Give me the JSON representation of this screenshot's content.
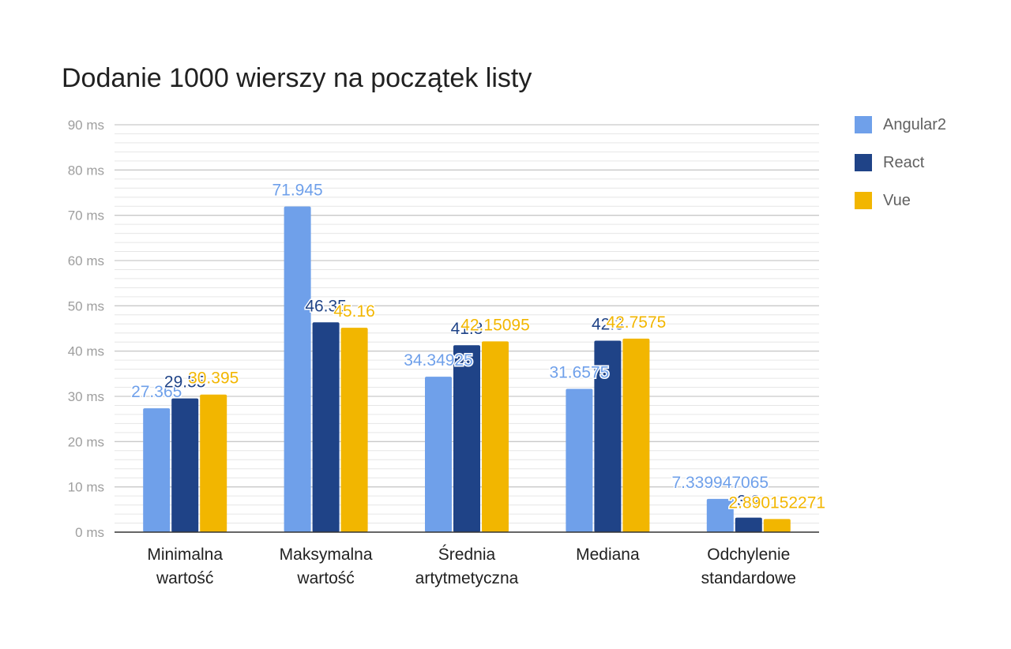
{
  "chart_data": {
    "type": "bar",
    "title": "Dodanie 1000 wierszy na początek listy",
    "xlabel": "",
    "ylabel": "",
    "ylim": [
      0,
      90
    ],
    "y_tick_labels": [
      "0 ms",
      "10 ms",
      "20 ms",
      "30 ms",
      "40 ms",
      "50 ms",
      "60 ms",
      "70 ms",
      "80 ms",
      "90 ms"
    ],
    "grid": true,
    "legend_position": "right",
    "categories": [
      [
        "Minimalna",
        "wartość"
      ],
      [
        "Maksymalna",
        "wartość"
      ],
      [
        "Średnia",
        "artytmetyczna"
      ],
      [
        "Mediana"
      ],
      [
        "Odchylenie",
        "standardowe"
      ]
    ],
    "series": [
      {
        "name": "Angular2",
        "color": "#6fa0ea",
        "values": [
          27.365,
          71.945,
          34.34925,
          31.6575,
          7.339947065
        ],
        "labels": [
          "27.365",
          "71.945",
          "34.34925",
          "31.6575",
          "7.339947065"
        ]
      },
      {
        "name": "React",
        "color": "#1f4387",
        "values": [
          29.55,
          46.35,
          41.3,
          42.3,
          3.2
        ],
        "labels": [
          "29.55",
          "46.35",
          "41.3",
          "42.3",
          "3.2"
        ]
      },
      {
        "name": "Vue",
        "color": "#f2b600",
        "values": [
          30.395,
          45.16,
          42.15095,
          42.7575,
          2.890152271
        ],
        "labels": [
          "30.395",
          "45.16",
          "42.15095",
          "42.7575",
          "2.890152271"
        ]
      }
    ]
  }
}
